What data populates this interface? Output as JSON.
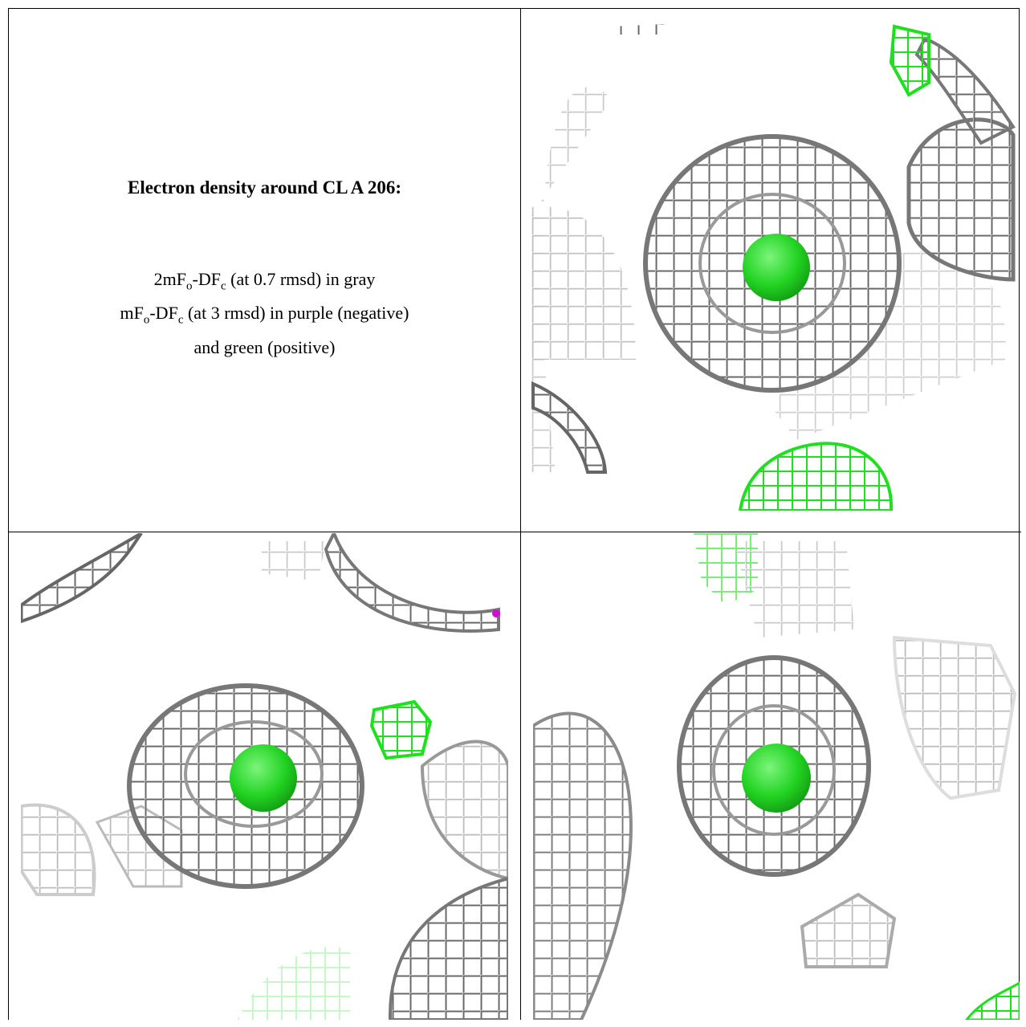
{
  "text_panel": {
    "title": "Electron density around CL A 206:",
    "lines": [
      {
        "parts": [
          "2mF",
          "o",
          "-DF",
          "c",
          " (at 0.7 rmsd) in gray"
        ]
      },
      {
        "parts": [
          "mF",
          "o",
          "-DF",
          "c",
          " (at 3 rmsd) in purple (negative)"
        ]
      },
      {
        "parts": [
          "and green (positive)"
        ]
      }
    ]
  }
}
